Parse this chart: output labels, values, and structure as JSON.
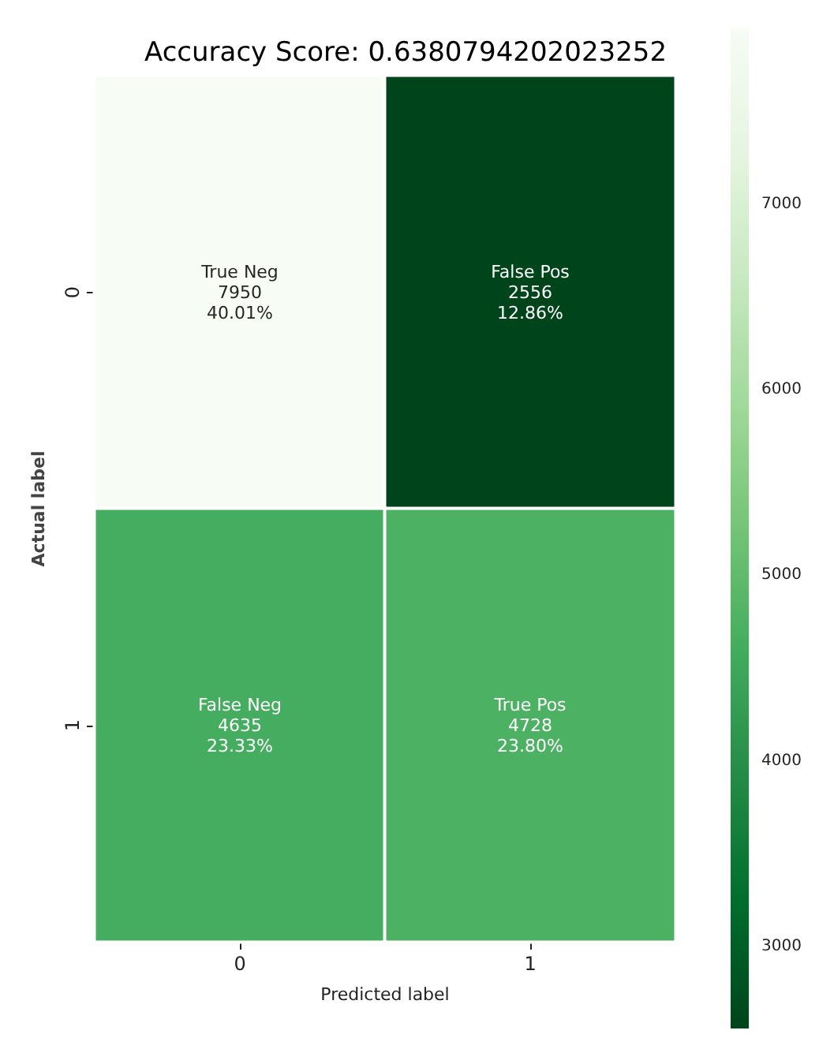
{
  "chart_data": {
    "type": "heatmap",
    "title": "Accuracy Score: 0.6380794202023252",
    "xlabel": "Predicted label",
    "ylabel": "Actual label",
    "categories": [
      "0",
      "1"
    ],
    "y_categories": [
      "0",
      "1"
    ],
    "cells": [
      [
        7950,
        2556
      ],
      [
        4635,
        4728
      ]
    ],
    "cell_labels": [
      [
        "True Neg\n7950\n40.01%",
        "False Pos\n2556\n12.86%"
      ],
      [
        "False Neg\n4635\n23.33%",
        "True Pos\n4728\n23.80%"
      ]
    ],
    "clim": [
      2556,
      7950
    ],
    "cticks": [
      3000,
      4000,
      5000,
      6000,
      7000
    ]
  }
}
